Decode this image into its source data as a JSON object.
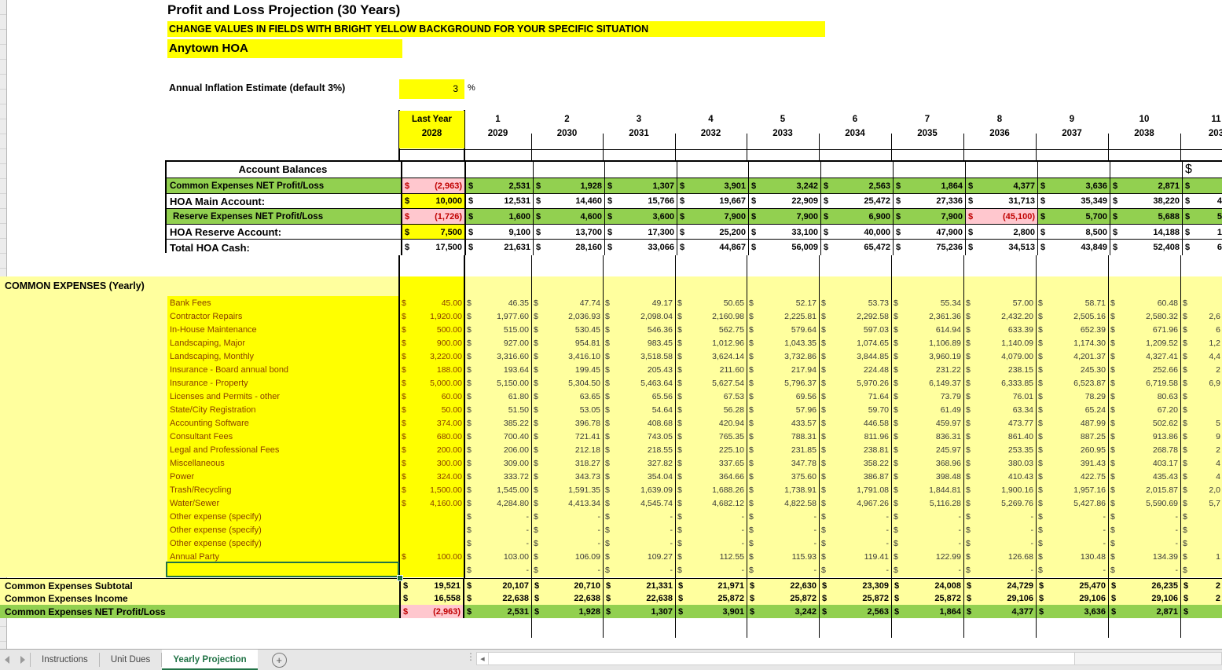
{
  "colors": {
    "bright_yellow": "#FFFF00",
    "pale_yellow": "#FFFF9E",
    "green_row": "#92D050",
    "pink_bad": "#FFC7CE",
    "red_negative": "#C00000",
    "brown_input_text": "#8B4000",
    "active_tab_green": "#217346"
  },
  "header": {
    "title": "Profit and Loss Projection (30 Years)",
    "banner": "CHANGE VALUES IN FIELDS WITH BRIGHT YELLOW BACKGROUND FOR YOUR SPECIFIC SITUATION",
    "company": "Anytown HOA",
    "inflation_label": "Annual Inflation Estimate (default 3%)",
    "inflation_value": "3",
    "inflation_unit": "%"
  },
  "year_header": {
    "last_year": {
      "label": "Last Year",
      "year": "2028"
    },
    "years": [
      {
        "num": "1",
        "year": "2029"
      },
      {
        "num": "2",
        "year": "2030"
      },
      {
        "num": "3",
        "year": "2031"
      },
      {
        "num": "4",
        "year": "2032"
      },
      {
        "num": "5",
        "year": "2033"
      },
      {
        "num": "6",
        "year": "2034"
      },
      {
        "num": "7",
        "year": "2035"
      },
      {
        "num": "8",
        "year": "2036"
      },
      {
        "num": "9",
        "year": "2037"
      },
      {
        "num": "10",
        "year": "2038"
      }
    ],
    "partial": {
      "num": "11",
      "year": "203"
    }
  },
  "account_balances": {
    "title": "Account Balances",
    "rows": [
      {
        "label": "Common Expenses NET Profit/Loss",
        "row_style": "green",
        "small": true,
        "values": [
          "(2,963)",
          "2,531",
          "1,928",
          "1,307",
          "3,901",
          "3,242",
          "2,563",
          "1,864",
          "4,377",
          "3,636",
          "2,871",
          ""
        ],
        "cell_styles": {
          "0": "pink"
        }
      },
      {
        "label": "HOA Main Account:",
        "row_style": "white",
        "small": false,
        "values": [
          "10,000",
          "12,531",
          "14,460",
          "15,766",
          "19,667",
          "22,909",
          "25,472",
          "27,336",
          "31,713",
          "35,349",
          "38,220",
          "4"
        ],
        "cell_styles": {
          "0": "yellow"
        }
      },
      {
        "label": "Reserve Expenses NET Profit/Loss",
        "row_style": "green",
        "small": true,
        "values": [
          "(1,726)",
          "1,600",
          "4,600",
          "3,600",
          "7,900",
          "7,900",
          "6,900",
          "7,900",
          "(45,100)",
          "5,700",
          "5,688",
          "5"
        ],
        "cell_styles": {
          "0": "pink",
          "8": "pink"
        }
      },
      {
        "label": "HOA Reserve Account:",
        "row_style": "white",
        "small": false,
        "values": [
          "7,500",
          "9,100",
          "13,700",
          "17,300",
          "25,200",
          "33,100",
          "40,000",
          "47,900",
          "2,800",
          "8,500",
          "14,188",
          "1"
        ],
        "cell_styles": {
          "0": "yellow"
        }
      },
      {
        "label": "Total HOA Cash:",
        "row_style": "white",
        "small": false,
        "values": [
          "17,500",
          "21,631",
          "28,160",
          "33,066",
          "44,867",
          "56,009",
          "65,472",
          "75,236",
          "34,513",
          "43,849",
          "52,408",
          "6"
        ],
        "cell_styles": {}
      }
    ]
  },
  "expenses": {
    "section_title": "COMMON EXPENSES (Yearly)",
    "rows": [
      {
        "label": "Bank Fees",
        "values": [
          "45.00",
          "46.35",
          "47.74",
          "49.17",
          "50.65",
          "52.17",
          "53.73",
          "55.34",
          "57.00",
          "58.71",
          "60.48",
          ""
        ]
      },
      {
        "label": "Contractor Repairs",
        "values": [
          "1,920.00",
          "1,977.60",
          "2,036.93",
          "2,098.04",
          "2,160.98",
          "2,225.81",
          "2,292.58",
          "2,361.36",
          "2,432.20",
          "2,505.16",
          "2,580.32",
          "2,6"
        ]
      },
      {
        "label": "In-House Maintenance",
        "values": [
          "500.00",
          "515.00",
          "530.45",
          "546.36",
          "562.75",
          "579.64",
          "597.03",
          "614.94",
          "633.39",
          "652.39",
          "671.96",
          "6"
        ]
      },
      {
        "label": "Landscaping, Major",
        "values": [
          "900.00",
          "927.00",
          "954.81",
          "983.45",
          "1,012.96",
          "1,043.35",
          "1,074.65",
          "1,106.89",
          "1,140.09",
          "1,174.30",
          "1,209.52",
          "1,2"
        ]
      },
      {
        "label": "Landscaping, Monthly",
        "values": [
          "3,220.00",
          "3,316.60",
          "3,416.10",
          "3,518.58",
          "3,624.14",
          "3,732.86",
          "3,844.85",
          "3,960.19",
          "4,079.00",
          "4,201.37",
          "4,327.41",
          "4,4"
        ]
      },
      {
        "label": "Insurance - Board annual bond",
        "values": [
          "188.00",
          "193.64",
          "199.45",
          "205.43",
          "211.60",
          "217.94",
          "224.48",
          "231.22",
          "238.15",
          "245.30",
          "252.66",
          "2"
        ]
      },
      {
        "label": "Insurance - Property",
        "values": [
          "5,000.00",
          "5,150.00",
          "5,304.50",
          "5,463.64",
          "5,627.54",
          "5,796.37",
          "5,970.26",
          "6,149.37",
          "6,333.85",
          "6,523.87",
          "6,719.58",
          "6,9"
        ]
      },
      {
        "label": "Licenses and Permits - other",
        "values": [
          "60.00",
          "61.80",
          "63.65",
          "65.56",
          "67.53",
          "69.56",
          "71.64",
          "73.79",
          "76.01",
          "78.29",
          "80.63",
          ""
        ]
      },
      {
        "label": "State/City Registration",
        "values": [
          "50.00",
          "51.50",
          "53.05",
          "54.64",
          "56.28",
          "57.96",
          "59.70",
          "61.49",
          "63.34",
          "65.24",
          "67.20",
          ""
        ]
      },
      {
        "label": "Accounting Software",
        "values": [
          "374.00",
          "385.22",
          "396.78",
          "408.68",
          "420.94",
          "433.57",
          "446.58",
          "459.97",
          "473.77",
          "487.99",
          "502.62",
          "5"
        ]
      },
      {
        "label": "Consultant Fees",
        "values": [
          "680.00",
          "700.40",
          "721.41",
          "743.05",
          "765.35",
          "788.31",
          "811.96",
          "836.31",
          "861.40",
          "887.25",
          "913.86",
          "9"
        ]
      },
      {
        "label": "Legal and Professional Fees",
        "values": [
          "200.00",
          "206.00",
          "212.18",
          "218.55",
          "225.10",
          "231.85",
          "238.81",
          "245.97",
          "253.35",
          "260.95",
          "268.78",
          "2"
        ]
      },
      {
        "label": "Miscellaneous",
        "values": [
          "300.00",
          "309.00",
          "318.27",
          "327.82",
          "337.65",
          "347.78",
          "358.22",
          "368.96",
          "380.03",
          "391.43",
          "403.17",
          "4"
        ]
      },
      {
        "label": "Power",
        "values": [
          "324.00",
          "333.72",
          "343.73",
          "354.04",
          "364.66",
          "375.60",
          "386.87",
          "398.48",
          "410.43",
          "422.75",
          "435.43",
          "4"
        ]
      },
      {
        "label": "Trash/Recycling",
        "values": [
          "1,500.00",
          "1,545.00",
          "1,591.35",
          "1,639.09",
          "1,688.26",
          "1,738.91",
          "1,791.08",
          "1,844.81",
          "1,900.16",
          "1,957.16",
          "2,015.87",
          "2,0"
        ]
      },
      {
        "label": "Water/Sewer",
        "values": [
          "4,160.00",
          "4,284.80",
          "4,413.34",
          "4,545.74",
          "4,682.12",
          "4,822.58",
          "4,967.26",
          "5,116.28",
          "5,269.76",
          "5,427.86",
          "5,590.69",
          "5,7"
        ]
      },
      {
        "label": "Other expense (specify)",
        "values": [
          "",
          "-",
          "-",
          "-",
          "-",
          "-",
          "-",
          "-",
          "-",
          "-",
          "-",
          ""
        ]
      },
      {
        "label": "Other expense (specify)",
        "values": [
          "",
          "-",
          "-",
          "-",
          "-",
          "-",
          "-",
          "-",
          "-",
          "-",
          "-",
          ""
        ]
      },
      {
        "label": "Other expense (specify)",
        "values": [
          "",
          "-",
          "-",
          "-",
          "-",
          "-",
          "-",
          "-",
          "-",
          "-",
          "-",
          ""
        ]
      },
      {
        "label": "Annual Party",
        "values": [
          "100.00",
          "103.00",
          "106.09",
          "109.27",
          "112.55",
          "115.93",
          "119.41",
          "122.99",
          "126.68",
          "130.48",
          "134.39",
          "1"
        ]
      },
      {
        "label": "",
        "values": [
          "",
          "-",
          "-",
          "-",
          "-",
          "-",
          "-",
          "-",
          "-",
          "-",
          "-",
          ""
        ]
      }
    ],
    "totals": [
      {
        "label": "Common Expenses Subtotal",
        "style": "pale",
        "values": [
          "19,521",
          "20,107",
          "20,710",
          "21,331",
          "21,971",
          "22,630",
          "23,309",
          "24,008",
          "24,729",
          "25,470",
          "26,235",
          "2"
        ],
        "cell_styles": {}
      },
      {
        "label": "Common Expenses Income",
        "style": "pale",
        "values": [
          "16,558",
          "22,638",
          "22,638",
          "22,638",
          "25,872",
          "25,872",
          "25,872",
          "25,872",
          "29,106",
          "29,106",
          "29,106",
          "2"
        ],
        "cell_styles": {}
      },
      {
        "label": "Common Expenses NET Profit/Loss",
        "style": "green",
        "values": [
          "(2,963)",
          "2,531",
          "1,928",
          "1,307",
          "3,901",
          "3,242",
          "2,563",
          "1,864",
          "4,377",
          "3,636",
          "2,871",
          ""
        ],
        "cell_styles": {
          "0": "pink"
        }
      }
    ]
  },
  "sheet_tabs": {
    "tabs": [
      {
        "label": "Instructions",
        "active": false
      },
      {
        "label": "Unit Dues",
        "active": false
      },
      {
        "label": "Yearly Projection",
        "active": true
      }
    ],
    "add_button": "+"
  }
}
